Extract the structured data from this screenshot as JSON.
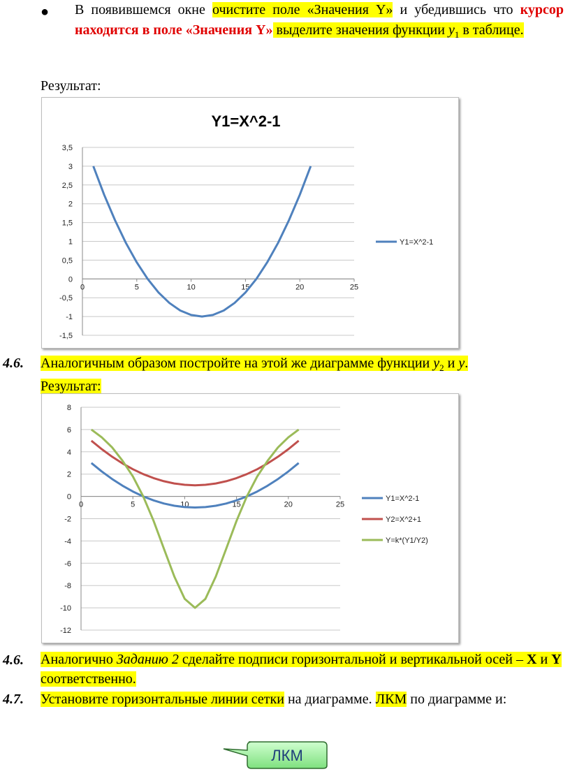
{
  "item1": {
    "part1": "В появившемся окне ",
    "part2_hl": "очистите поле «Значения Y»",
    "part3": " и убедившись что ",
    "part4_red": "курсор находится в поле «Значения Y»",
    "part5_hl": " выделите значения функции ",
    "part6_var": "y",
    "part6_sub": "1",
    "part7_hl": " в таблице."
  },
  "result1_label": "Результат:",
  "section_46a": {
    "number": "4.6.",
    "text_hl": "Аналогичным образом постройте на этой же диаграмме функции ",
    "var1": "y",
    "var1_sub": "2",
    "mid": " и ",
    "var2": "y",
    "end": ".",
    "result_label": "Результат:"
  },
  "section_46b": {
    "number": "4.6.",
    "t1": "Аналогично ",
    "t2_italic": "Заданию 2",
    "t3": " сделайте подписи горизонтальной и вертикальной осей – ",
    "x": "X",
    "and": " и ",
    "y": "Y",
    "t4": " соответственно."
  },
  "section_47": {
    "number": "4.7.",
    "t1_hl": "Установите горизонтальные линии сетки",
    "t2": " на диаграмме. ",
    "t3_hl": "ЛКМ",
    "t4": " по диаграмме и:"
  },
  "callout_label": "ЛКМ",
  "chart_data": [
    {
      "type": "line",
      "title": "Y1=X^2-1",
      "x_ticks": [
        "0",
        "5",
        "10",
        "15",
        "20",
        "25"
      ],
      "y_ticks": [
        "3,5",
        "3",
        "2,5",
        "2",
        "1,5",
        "1",
        "0,5",
        "0",
        "-0,5",
        "-1",
        "-1,5"
      ],
      "xlim": [
        0,
        25
      ],
      "ylim": [
        -1.5,
        3.5
      ],
      "grid": "horizontal",
      "legend_position": "right",
      "series": [
        {
          "name": "Y1=X^2-1",
          "color": "#4f81bd",
          "x": [
            1,
            2,
            3,
            4,
            5,
            6,
            7,
            8,
            9,
            10,
            11,
            12,
            13,
            14,
            15,
            16,
            17,
            18,
            19,
            20,
            21
          ],
          "y": [
            3,
            2.24,
            1.56,
            0.96,
            0.44,
            0,
            -0.36,
            -0.64,
            -0.84,
            -0.96,
            -1,
            -0.96,
            -0.84,
            -0.64,
            -0.36,
            0,
            0.44,
            0.96,
            1.56,
            2.24,
            3
          ]
        }
      ]
    },
    {
      "type": "line",
      "title": "",
      "x_ticks": [
        "0",
        "5",
        "10",
        "15",
        "20",
        "25"
      ],
      "y_ticks": [
        "8",
        "6",
        "4",
        "2",
        "0",
        "-2",
        "-4",
        "-6",
        "-8",
        "-10",
        "-12"
      ],
      "xlim": [
        0,
        25
      ],
      "ylim": [
        -12,
        8
      ],
      "grid": "horizontal",
      "legend_position": "right",
      "series": [
        {
          "name": "Y1=X^2-1",
          "color": "#4f81bd",
          "x": [
            1,
            2,
            3,
            4,
            5,
            6,
            7,
            8,
            9,
            10,
            11,
            12,
            13,
            14,
            15,
            16,
            17,
            18,
            19,
            20,
            21
          ],
          "y": [
            3,
            2.24,
            1.56,
            0.96,
            0.44,
            0,
            -0.36,
            -0.64,
            -0.84,
            -0.96,
            -1,
            -0.96,
            -0.84,
            -0.64,
            -0.36,
            0,
            0.44,
            0.96,
            1.56,
            2.24,
            3
          ]
        },
        {
          "name": "Y2=X^2+1",
          "color": "#c0504d",
          "x": [
            1,
            2,
            3,
            4,
            5,
            6,
            7,
            8,
            9,
            10,
            11,
            12,
            13,
            14,
            15,
            16,
            17,
            18,
            19,
            20,
            21
          ],
          "y": [
            5,
            4.24,
            3.56,
            2.96,
            2.44,
            2,
            1.64,
            1.36,
            1.16,
            1.04,
            1,
            1.04,
            1.16,
            1.36,
            1.64,
            2,
            2.44,
            2.96,
            3.56,
            4.24,
            5
          ]
        },
        {
          "name": "Y=k*(Y1/Y2)",
          "color": "#9bbb59",
          "x": [
            1,
            2,
            3,
            4,
            5,
            6,
            7,
            8,
            9,
            10,
            11,
            12,
            13,
            14,
            15,
            16,
            17,
            18,
            19,
            20,
            21
          ],
          "y": [
            6,
            5.3,
            4.4,
            3.2,
            1.8,
            0,
            -2.2,
            -4.7,
            -7.2,
            -9.2,
            -10,
            -9.2,
            -7.2,
            -4.7,
            -2.2,
            0,
            1.8,
            3.2,
            4.4,
            5.3,
            6
          ]
        }
      ]
    }
  ]
}
